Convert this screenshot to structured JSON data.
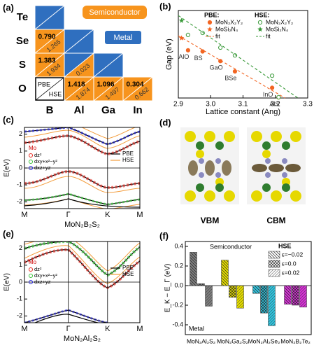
{
  "panel_a": {
    "label": "(a)",
    "rows": [
      "Te",
      "Se",
      "S",
      "O"
    ],
    "columns": [
      "B",
      "Al",
      "Ga",
      "In"
    ],
    "cells": [
      [
        {
          "pbe": null,
          "hse": null
        }
      ],
      [
        {
          "pbe": "0.790",
          "hse": "1.265"
        },
        {
          "pbe": null,
          "hse": null
        }
      ],
      [
        {
          "pbe": "1.383",
          "hse": "1.934"
        },
        {
          "pbe": null,
          "hse": "0.023"
        },
        {
          "pbe": null,
          "hse": null
        }
      ],
      [
        null,
        {
          "pbe": "1.418",
          "hse": "1.874"
        },
        {
          "pbe": "1.096",
          "hse": "1.497"
        },
        {
          "pbe": "0.304",
          "hse": "0.662"
        }
      ]
    ],
    "key": {
      "pbe": "PBE",
      "hse": "HSE"
    },
    "semiconductor": "Semiconductor",
    "metal": "Metal",
    "colors": {
      "semiconductor": "#f7941d",
      "metal": "#2f6fbf"
    }
  },
  "chart_data": [
    {
      "type": "scatter",
      "label": "(b)",
      "xlabel": "Lattice constant (Ang)",
      "ylabel": "Gap (eV)",
      "xlim": [
        2.9,
        3.3
      ],
      "xticks": [
        {
          "value": 2.9,
          "label": "2.9"
        },
        {
          "value": 3,
          "label": "3.0"
        },
        3.1,
        3.2,
        3.3
      ],
      "ylim": [
        0,
        2.6
      ],
      "groups": [
        {
          "title": "PBE:",
          "series": [
            {
              "name": "MoN₂X₂Y₂",
              "color": "#f26522",
              "marker": "circle",
              "filled": true,
              "x": [
                2.93,
                2.975,
                3.03,
                3.075,
                3.19,
                3.21
              ],
              "values": [
                1.418,
                1.383,
                1.096,
                0.79,
                0.304,
                0.02
              ],
              "point_labels": [
                "AlO",
                "BS",
                "GaO",
                "BSe",
                "InO",
                "AlS"
              ]
            },
            {
              "name": "MoSi₂N₄",
              "color": "#f26522",
              "marker": "star",
              "filled": true,
              "x": [
                2.91
              ],
              "values": [
                1.78
              ]
            },
            {
              "name": "fit",
              "color": "#f26522",
              "marker": "line",
              "x": [
                2.9,
                3.23
              ],
              "values": [
                1.85,
                0
              ]
            }
          ]
        },
        {
          "title": "HSE:",
          "series": [
            {
              "name": "MoN₂X₂Y₂",
              "color": "#3a9a3a",
              "marker": "circle",
              "filled": false,
              "x": [
                2.93,
                2.975,
                3.03,
                3.075,
                3.19,
                3.21
              ],
              "values": [
                1.874,
                1.934,
                1.497,
                1.265,
                0.662,
                0.023
              ]
            },
            {
              "name": "MoSi₂N₄",
              "color": "#3a9a3a",
              "marker": "star",
              "filled": true,
              "x": [
                2.91
              ],
              "values": [
                2.3
              ]
            },
            {
              "name": "fit",
              "color": "#3a9a3a",
              "marker": "line",
              "x": [
                2.9,
                3.27
              ],
              "values": [
                2.45,
                0
              ]
            }
          ]
        }
      ]
    },
    {
      "type": "bar",
      "label": "(f)",
      "ylabel": "E_K − E_Γ (eV)",
      "ylim": [
        -0.5,
        0.45
      ],
      "yticks": [
        -0.4,
        -0.2,
        {
          "value": 0,
          "label": "0.0"
        },
        0.2,
        0.4
      ],
      "categories": [
        "MoN₂Al₂S₂",
        "MoN₂Ga₂S₂",
        "MoN₂Al₂Se₂",
        "MoN₂B₂Te₂"
      ],
      "category_colors": [
        "#808080",
        "#e8e000",
        "#33c6e0",
        "#d633d6"
      ],
      "legend_title": "HSE",
      "series": [
        {
          "name": "ε=−0.02",
          "hatch": "back",
          "values": [
            0.34,
            0.26,
            -0.08,
            -0.19
          ]
        },
        {
          "name": "ε=0.0",
          "hatch": "cross",
          "values": [
            0.02,
            -0.12,
            -0.28,
            -0.2
          ]
        },
        {
          "name": "ε=0.02",
          "hatch": "forward",
          "values": [
            -0.21,
            -0.23,
            -0.41,
            -0.22
          ]
        }
      ],
      "annotations": [
        "Semiconductor",
        "Metal"
      ]
    }
  ],
  "panel_c": {
    "label": "(c)",
    "ylabel": "E(eV)",
    "ylim": [
      -2.4,
      2.4
    ],
    "yticks": [
      -2,
      -1,
      0,
      1,
      2
    ],
    "kpoints": [
      "M",
      "Γ",
      "K",
      "M"
    ],
    "material": "MoN₂B₂S₂",
    "legend_title": "Mo",
    "orbitals": [
      "dz²",
      "dxy+x²−y²",
      "dxz+yz"
    ],
    "orbital_colors": [
      "#e8281e",
      "#3ec43e",
      "#2828d8"
    ],
    "methods": [
      "PBE",
      "HSE"
    ]
  },
  "panel_d": {
    "label": "(d)",
    "states": [
      "VBM",
      "CBM"
    ]
  },
  "panel_e": {
    "label": "(e)",
    "ylabel": "E(eV)",
    "ylim": [
      -2.4,
      2.4
    ],
    "yticks": [
      -2,
      -1,
      0,
      1,
      2
    ],
    "kpoints": [
      "M",
      "Γ",
      "K",
      "M"
    ],
    "material": "MoN₂Al₂S₂",
    "legend_title": "Mo",
    "orbitals": [
      "dz²",
      "dxy+x²−y²",
      "dxz+yz"
    ],
    "orbital_colors": [
      "#e8281e",
      "#3ec43e",
      "#2828d8"
    ],
    "methods": [
      "PBE",
      "HSE"
    ]
  }
}
